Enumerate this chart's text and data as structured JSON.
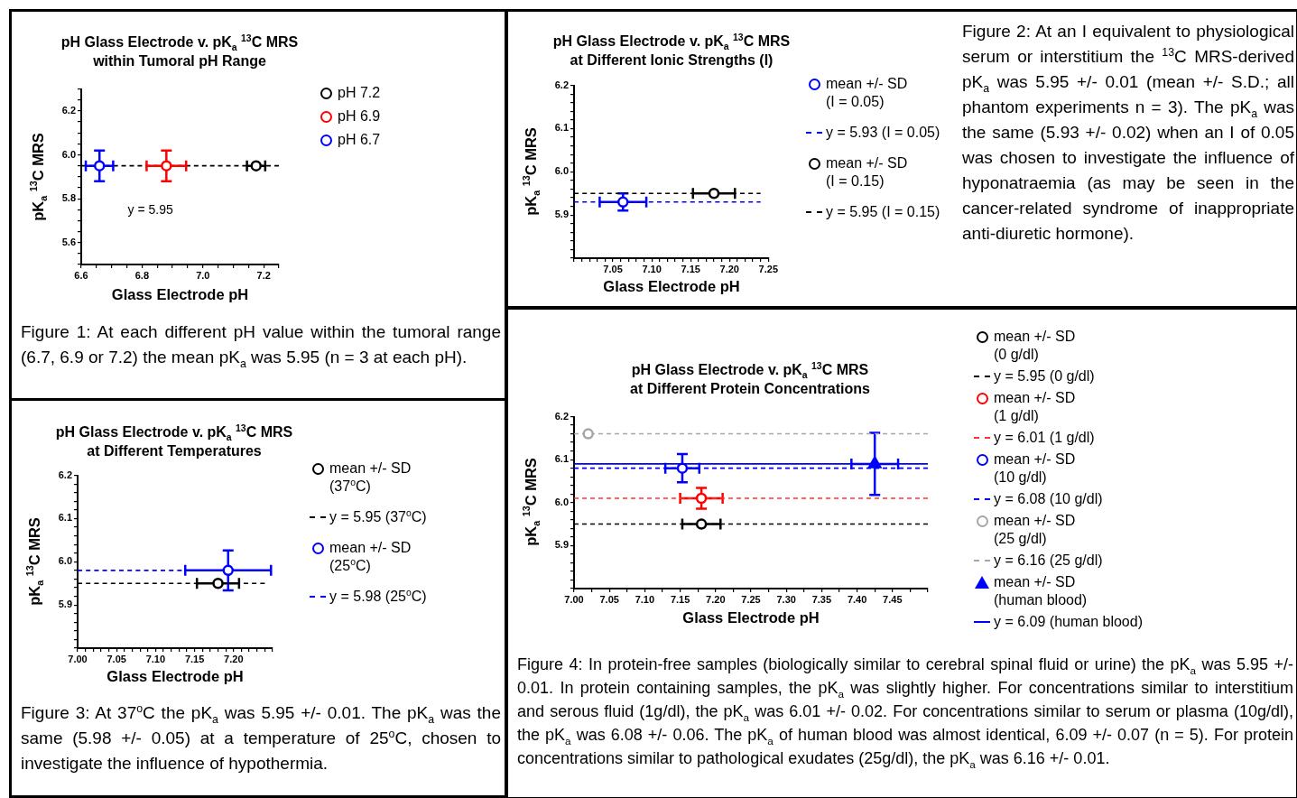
{
  "chart_data": [
    {
      "type": "scatter",
      "title": "pH Glass Electrode v. pK$_{a}$ $^{13}$C MRS",
      "subtitle": "within Tumoral pH Range",
      "xlabel": "Glass Electrode pH",
      "ylabel": "pK$_{a}$ $^{13}$C MRS",
      "legend": "right",
      "xlim": [
        6.6,
        7.25
      ],
      "ylim": [
        5.5,
        6.3
      ],
      "xticks": [
        6.6,
        {
          "value": 6.65,
          "label": null
        },
        {
          "value": 6.7,
          "label": null
        },
        {
          "value": 6.75,
          "label": null
        },
        6.8,
        {
          "value": 6.85,
          "label": null
        },
        {
          "value": 6.9,
          "label": null
        },
        {
          "value": 6.95,
          "label": null
        },
        {
          "value": 7.0,
          "label": "7.0"
        },
        {
          "value": 7.05,
          "label": null
        },
        {
          "value": 7.1,
          "label": null
        },
        {
          "value": 7.15,
          "label": null
        },
        7.2,
        {
          "value": 7.25,
          "label": null
        }
      ],
      "yticks": [
        {
          "value": 5.5,
          "label": null
        },
        {
          "value": 5.55,
          "label": null
        },
        5.6,
        {
          "value": 5.65,
          "label": null
        },
        {
          "value": 5.7,
          "label": null
        },
        {
          "value": 5.75,
          "label": null
        },
        5.8,
        {
          "value": 5.85,
          "label": null
        },
        {
          "value": 5.9,
          "label": null
        },
        {
          "value": 5.95,
          "label": null
        },
        {
          "value": 6.0,
          "label": "6.0"
        },
        {
          "value": 6.05,
          "label": null
        },
        {
          "value": 6.1,
          "label": null
        },
        {
          "value": 6.15,
          "label": null
        },
        6.2,
        {
          "value": 6.25,
          "label": null
        },
        {
          "value": 6.3,
          "label": null
        }
      ],
      "ref_lines": [
        {
          "axis": "y",
          "value": 5.95,
          "label": "y = 5.95",
          "color": "#000000",
          "line_style": "dashed"
        }
      ],
      "series": [
        {
          "name": "pH 7.2",
          "color": "#000000",
          "marker": "circle",
          "x": [
            7.175
          ],
          "values": [
            5.95
          ],
          "xerrors": [
            0.03
          ]
        },
        {
          "name": "pH 6.9",
          "color": "#ff0000",
          "marker": "circle",
          "x": [
            6.88
          ],
          "values": [
            5.95
          ],
          "errors": [
            0.07
          ],
          "xerrors": [
            0.065
          ]
        },
        {
          "name": "pH 6.7",
          "color": "#0000ff",
          "marker": "circle",
          "x": [
            6.66
          ],
          "values": [
            5.95
          ],
          "errors": [
            0.07
          ],
          "xerrors": [
            0.045
          ]
        }
      ],
      "annotations": [
        "Figure 1: At each different pH value within the tumoral range (6.7, 6.9 or 7.2) the mean pK$_{a}$ was 5.95 (n = 3 at each pH)."
      ]
    },
    {
      "type": "scatter",
      "title": "pH Glass Electrode v. pK$_{a}$ $^{13}$C MRS",
      "subtitle": "at Different Ionic Strengths (I)",
      "xlabel": "Glass Electrode pH",
      "ylabel": "pK$_{a}$ $^{13}$C MRS",
      "legend": "right",
      "xlim": [
        7.0,
        7.25
      ],
      "ylim": [
        5.8,
        6.2
      ],
      "xticks": [
        {
          "value": 7.0,
          "label": null
        },
        {
          "value": 7.01,
          "label": null
        },
        {
          "value": 7.02,
          "label": null
        },
        {
          "value": 7.03,
          "label": null
        },
        {
          "value": 7.04,
          "label": null
        },
        7.05,
        {
          "value": 7.06,
          "label": null
        },
        {
          "value": 7.07,
          "label": null
        },
        {
          "value": 7.08,
          "label": null
        },
        {
          "value": 7.09,
          "label": null
        },
        {
          "value": 7.1,
          "label": "7.10"
        },
        {
          "value": 7.11,
          "label": null
        },
        {
          "value": 7.12,
          "label": null
        },
        {
          "value": 7.13,
          "label": null
        },
        {
          "value": 7.14,
          "label": null
        },
        7.15,
        {
          "value": 7.16,
          "label": null
        },
        {
          "value": 7.17,
          "label": null
        },
        {
          "value": 7.18,
          "label": null
        },
        {
          "value": 7.19,
          "label": null
        },
        {
          "value": 7.2,
          "label": "7.20"
        },
        {
          "value": 7.21,
          "label": null
        },
        {
          "value": 7.22,
          "label": null
        },
        {
          "value": 7.23,
          "label": null
        },
        {
          "value": 7.24,
          "label": null
        },
        7.25
      ],
      "yticks": [
        {
          "value": 5.8,
          "label": null
        },
        {
          "value": 5.82,
          "label": null
        },
        {
          "value": 5.84,
          "label": null
        },
        {
          "value": 5.86,
          "label": null
        },
        {
          "value": 5.88,
          "label": null
        },
        5.9,
        {
          "value": 5.92,
          "label": null
        },
        {
          "value": 5.94,
          "label": null
        },
        {
          "value": 5.96,
          "label": null
        },
        {
          "value": 5.98,
          "label": null
        },
        {
          "value": 6.0,
          "label": "6.0"
        },
        {
          "value": 6.02,
          "label": null
        },
        {
          "value": 6.04,
          "label": null
        },
        {
          "value": 6.06,
          "label": null
        },
        {
          "value": 6.08,
          "label": null
        },
        6.1,
        {
          "value": 6.12,
          "label": null
        },
        {
          "value": 6.14,
          "label": null
        },
        {
          "value": 6.16,
          "label": null
        },
        {
          "value": 6.18,
          "label": null
        },
        6.2
      ],
      "series": [
        {
          "name": "mean +/- SD\n(I = 0.05)",
          "color": "#0000ff",
          "marker": "circle",
          "x": [
            7.063
          ],
          "values": [
            5.93
          ],
          "errors": [
            0.02
          ],
          "xerrors": [
            0.03
          ]
        },
        {
          "name": "y = 5.93 (I = 0.05)",
          "type": "line",
          "color": "#0000ff",
          "marker": "none",
          "line_style": "dashed",
          "x": [
            7.0,
            7.24
          ],
          "values": [
            5.93,
            5.93
          ]
        },
        {
          "name": "mean +/- SD\n(I = 0.15)",
          "color": "#000000",
          "marker": "circle",
          "x": [
            7.18
          ],
          "values": [
            5.95
          ],
          "xerrors": [
            0.027
          ]
        },
        {
          "name": "y = 5.95 (I = 0.15)",
          "type": "line",
          "color": "#000000",
          "marker": "none",
          "line_style": "dashed",
          "x": [
            7.0,
            7.24
          ],
          "values": [
            5.95,
            5.95
          ]
        }
      ],
      "annotations": [
        "Figure 2: At an I equivalent to physiological serum or interstitium the $^{13}$C MRS-derived pK$_{a}$ was 5.95 +/- 0.01 (mean +/- S.D.; all phantom experiments n = 3). The pK$_{a}$ was the same (5.93 +/- 0.02) when an I of 0.05 was chosen to investigate the influence of hyponatraemia (as may be seen in the cancer-related syndrome of inappropriate anti-diuretic hormone)."
      ]
    },
    {
      "type": "scatter",
      "title": "pH Glass Electrode v. pK$_{a}$ $^{13}$C MRS",
      "subtitle": "at Different Temperatures",
      "xlabel": "Glass Electrode pH",
      "ylabel": "pK$_{a}$ $^{13}$C MRS",
      "legend": "right",
      "xlim": [
        7.0,
        7.25
      ],
      "ylim": [
        5.8,
        6.2
      ],
      "xticks": [
        {
          "value": 7.0,
          "label": "7.00"
        },
        {
          "value": 7.01,
          "label": null
        },
        {
          "value": 7.02,
          "label": null
        },
        {
          "value": 7.03,
          "label": null
        },
        {
          "value": 7.04,
          "label": null
        },
        7.05,
        {
          "value": 7.06,
          "label": null
        },
        {
          "value": 7.07,
          "label": null
        },
        {
          "value": 7.08,
          "label": null
        },
        {
          "value": 7.09,
          "label": null
        },
        {
          "value": 7.1,
          "label": "7.10"
        },
        {
          "value": 7.11,
          "label": null
        },
        {
          "value": 7.12,
          "label": null
        },
        {
          "value": 7.13,
          "label": null
        },
        {
          "value": 7.14,
          "label": null
        },
        7.15,
        {
          "value": 7.16,
          "label": null
        },
        {
          "value": 7.17,
          "label": null
        },
        {
          "value": 7.18,
          "label": null
        },
        {
          "value": 7.19,
          "label": null
        },
        {
          "value": 7.2,
          "label": "7.20"
        },
        {
          "value": 7.21,
          "label": null
        },
        {
          "value": 7.22,
          "label": null
        },
        {
          "value": 7.23,
          "label": null
        },
        {
          "value": 7.24,
          "label": null
        },
        {
          "value": 7.25,
          "label": null
        }
      ],
      "yticks": [
        {
          "value": 5.8,
          "label": null
        },
        {
          "value": 5.82,
          "label": null
        },
        {
          "value": 5.84,
          "label": null
        },
        {
          "value": 5.86,
          "label": null
        },
        {
          "value": 5.88,
          "label": null
        },
        5.9,
        {
          "value": 5.92,
          "label": null
        },
        {
          "value": 5.94,
          "label": null
        },
        {
          "value": 5.96,
          "label": null
        },
        {
          "value": 5.98,
          "label": null
        },
        {
          "value": 6.0,
          "label": "6.0"
        },
        {
          "value": 6.02,
          "label": null
        },
        {
          "value": 6.04,
          "label": null
        },
        {
          "value": 6.06,
          "label": null
        },
        {
          "value": 6.08,
          "label": null
        },
        6.1,
        {
          "value": 6.12,
          "label": null
        },
        {
          "value": 6.14,
          "label": null
        },
        {
          "value": 6.16,
          "label": null
        },
        {
          "value": 6.18,
          "label": null
        },
        6.2
      ],
      "series": [
        {
          "name": "mean +/- SD\n(37$^{o}$C)",
          "color": "#000000",
          "marker": "circle",
          "x": [
            7.18
          ],
          "values": [
            5.95
          ],
          "xerrors": [
            0.027
          ]
        },
        {
          "name": "y = 5.95 (37$^{o}$C)",
          "type": "line",
          "color": "#000000",
          "marker": "none",
          "line_style": "dashed",
          "x": [
            7.0,
            7.24
          ],
          "values": [
            5.95,
            5.95
          ]
        },
        {
          "name": "mean +/- SD\n(25$^{o}$C)",
          "color": "#0000ff",
          "marker": "circle",
          "x": [
            7.193
          ],
          "values": [
            5.98
          ],
          "errors": [
            0.046
          ],
          "xerrors": [
            0.055
          ]
        },
        {
          "name": "y = 5.98 (25$^{o}$C)",
          "type": "line",
          "color": "#0000ff",
          "marker": "none",
          "line_style": "dashed",
          "x": [
            7.0,
            7.24
          ],
          "values": [
            5.98,
            5.98
          ]
        }
      ],
      "annotations": [
        "Figure 3: At 37$^{o}$C the pK$_{a}$ was 5.95 +/- 0.01. The pK$_{a}$ was the same (5.98 +/- 0.05) at a temperature of 25$^{o}$C, chosen to investigate the influence of hypothermia."
      ]
    },
    {
      "type": "scatter",
      "title": "pH Glass Electrode v. pK$_{a}$ $^{13}$C MRS",
      "subtitle": "at Different Protein Concentrations",
      "xlabel": "Glass Electrode pH",
      "ylabel": "pK$_{a}$ $^{13}$C MRS",
      "legend": "right",
      "xlim": [
        7.0,
        7.5
      ],
      "ylim": [
        5.8,
        6.2
      ],
      "xticks": [
        {
          "value": 7.0,
          "label": "7.00"
        },
        {
          "value": 7.025,
          "label": null
        },
        7.05,
        {
          "value": 7.075,
          "label": null
        },
        {
          "value": 7.1,
          "label": "7.10"
        },
        {
          "value": 7.125,
          "label": null
        },
        7.15,
        {
          "value": 7.175,
          "label": null
        },
        {
          "value": 7.2,
          "label": "7.20"
        },
        {
          "value": 7.225,
          "label": null
        },
        7.25,
        {
          "value": 7.275,
          "label": null
        },
        {
          "value": 7.3,
          "label": "7.30"
        },
        {
          "value": 7.325,
          "label": null
        },
        7.35,
        {
          "value": 7.375,
          "label": null
        },
        {
          "value": 7.4,
          "label": "7.40"
        },
        {
          "value": 7.425,
          "label": null
        },
        7.45,
        {
          "value": 7.475,
          "label": null
        },
        {
          "value": 7.5,
          "label": null
        }
      ],
      "yticks": [
        {
          "value": 5.8,
          "label": null
        },
        {
          "value": 5.82,
          "label": null
        },
        {
          "value": 5.84,
          "label": null
        },
        {
          "value": 5.86,
          "label": null
        },
        {
          "value": 5.88,
          "label": null
        },
        5.9,
        {
          "value": 5.92,
          "label": null
        },
        {
          "value": 5.94,
          "label": null
        },
        {
          "value": 5.96,
          "label": null
        },
        {
          "value": 5.98,
          "label": null
        },
        {
          "value": 6.0,
          "label": "6.0"
        },
        {
          "value": 6.02,
          "label": null
        },
        {
          "value": 6.04,
          "label": null
        },
        {
          "value": 6.06,
          "label": null
        },
        {
          "value": 6.08,
          "label": null
        },
        6.1,
        {
          "value": 6.12,
          "label": null
        },
        {
          "value": 6.14,
          "label": null
        },
        {
          "value": 6.16,
          "label": null
        },
        {
          "value": 6.18,
          "label": null
        },
        6.2
      ],
      "series": [
        {
          "name": "mean +/- SD\n(0 g/dl)",
          "color": "#000000",
          "marker": "circle",
          "x": [
            7.18
          ],
          "values": [
            5.95
          ],
          "xerrors": [
            0.027
          ]
        },
        {
          "name": "y = 5.95 (0 g/dl)",
          "type": "line",
          "color": "#000000",
          "marker": "none",
          "line_style": "dashed",
          "x": [
            7.0,
            7.5
          ],
          "values": [
            5.95,
            5.95
          ]
        },
        {
          "name": "mean +/- SD\n(1 g/dl)",
          "color": "#ff0000",
          "marker": "circle",
          "x": [
            7.18
          ],
          "values": [
            6.01
          ],
          "errors": [
            0.024
          ],
          "xerrors": [
            0.03
          ]
        },
        {
          "name": "y = 6.01 (1 g/dl)",
          "type": "line",
          "color": "#ff3333",
          "marker": "none",
          "line_style": "dashed",
          "x": [
            7.0,
            7.5
          ],
          "values": [
            6.01,
            6.01
          ]
        },
        {
          "name": "mean +/- SD\n(10 g/dl)",
          "color": "#0000ff",
          "marker": "circle",
          "x": [
            7.153
          ],
          "values": [
            6.08
          ],
          "errors": [
            0.033
          ],
          "xerrors": [
            0.024
          ]
        },
        {
          "name": "y = 6.08 (10 g/dl)",
          "type": "line",
          "color": "#0000ff",
          "marker": "none",
          "line_style": "dashed",
          "x": [
            7.0,
            7.5
          ],
          "values": [
            6.08,
            6.08
          ]
        },
        {
          "name": "mean +/- SD\n(25 g/dl)",
          "color": "#a6a6a6",
          "marker": "circle",
          "x": [
            7.02
          ],
          "values": [
            6.16
          ]
        },
        {
          "name": "y = 6.16 (25 g/dl)",
          "type": "line",
          "color": "#a6a6a6",
          "marker": "none",
          "line_style": "dashed",
          "x": [
            7.0,
            7.5
          ],
          "values": [
            6.16,
            6.16
          ]
        },
        {
          "name": "mean +/- SD\n(human blood)",
          "color": "#0000ff",
          "marker": "triangle",
          "x": [
            7.425
          ],
          "values": [
            6.09
          ],
          "errors": [
            0.072
          ],
          "xerrors": [
            0.033
          ]
        },
        {
          "name": "y = 6.09 (human blood)",
          "type": "line",
          "color": "#0000ff",
          "marker": "none",
          "line_style": "solid",
          "x": [
            7.0,
            7.5
          ],
          "values": [
            6.09,
            6.09
          ]
        }
      ],
      "annotations": [
        "Figure 4: In protein-free samples (biologically similar to cerebral spinal fluid or urine) the pK$_{a}$ was 5.95 +/- 0.01. In protein containing samples, the pK$_{a}$ was slightly higher. For concentrations similar to interstitium and serous fluid (1g/dl), the pK$_{a}$ was 6.01 +/- 0.02. For concentrations similar to serum or plasma (10g/dl), the pK$_{a}$ was 6.08 +/- 0.06. The pK$_{a}$ of human blood was almost identical, 6.09 +/- 0.07 (n = 5). For protein concentrations similar to pathological exudates (25g/dl), the pK$_{a}$ was 6.16 +/- 0.01."
      ]
    }
  ]
}
